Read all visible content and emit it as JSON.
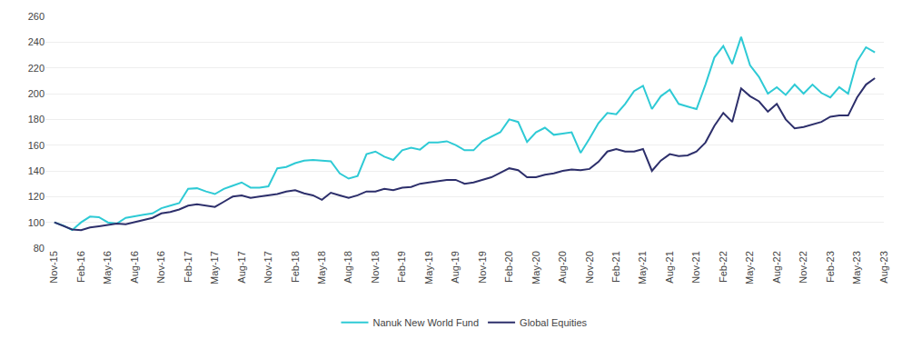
{
  "chart_data": {
    "type": "line",
    "categories": [
      "Nov-15",
      null,
      null,
      "Feb-16",
      null,
      null,
      "May-16",
      null,
      null,
      "Aug-16",
      null,
      null,
      "Nov-16",
      null,
      null,
      "Feb-17",
      null,
      null,
      "May-17",
      null,
      null,
      "Aug-17",
      null,
      null,
      "Nov-17",
      null,
      null,
      "Feb-18",
      null,
      null,
      "May-18",
      null,
      null,
      "Aug-18",
      null,
      null,
      "Nov-18",
      null,
      null,
      "Feb-19",
      null,
      null,
      "May-19",
      null,
      null,
      "Aug-19",
      null,
      null,
      "Nov-19",
      null,
      null,
      "Feb-20",
      null,
      null,
      "May-20",
      null,
      null,
      "Aug-20",
      null,
      null,
      "Nov-20",
      null,
      null,
      "Feb-21",
      null,
      null,
      "May-21",
      null,
      null,
      "Aug-21",
      null,
      null,
      "Nov-21",
      null,
      null,
      "Feb-22",
      null,
      null,
      "May-22",
      null,
      null,
      "Aug-22",
      null,
      null,
      "Nov-22",
      null,
      null,
      "Feb-23",
      null,
      null,
      "May-23",
      null,
      null,
      "Aug-23"
    ],
    "series": [
      {
        "name": "Nanuk New World Fund",
        "color": "#2ECAD5",
        "values": [
          100.0,
          97.5,
          94.0,
          100.0,
          104.5,
          104.0,
          100.0,
          99.0,
          103.5,
          105.0,
          106.0,
          107.0,
          111.0,
          113.0,
          115.0,
          126.0,
          126.5,
          124.0,
          122.0,
          126.0,
          128.5,
          131.0,
          127.0,
          127.0,
          128.0,
          142.0,
          143.0,
          146.0,
          148.0,
          148.5,
          148.0,
          147.5,
          138.0,
          134.0,
          136.0,
          153.0,
          155.0,
          151.0,
          148.5,
          156.0,
          158.0,
          156.5,
          162.0,
          162.0,
          163.0,
          160.0,
          156.0,
          156.0,
          163.0,
          166.5,
          170.0,
          180.0,
          178.0,
          162.5,
          170.0,
          173.5,
          168.0,
          169.0,
          170.0,
          154.0,
          165.0,
          177.0,
          185.0,
          184.0,
          192.0,
          202.0,
          206.0,
          188.0,
          198.0,
          203.0,
          192.0,
          190.0,
          188.0,
          207.0,
          228.0,
          237.0,
          223.0,
          244.0,
          222.0,
          213.0,
          200.0,
          205.0,
          199.0,
          207.0,
          200.0,
          207.0,
          200.5,
          197.0,
          205.0,
          200.0,
          225.0,
          236.0,
          232.0,
          null
        ]
      },
      {
        "name": "Global Equities",
        "color": "#2D2F6B",
        "values": [
          100.0,
          97.0,
          94.5,
          94.0,
          96.0,
          97.0,
          98.0,
          99.0,
          98.5,
          100.0,
          102.0,
          103.5,
          107.0,
          108.0,
          110.0,
          113.0,
          114.0,
          113.0,
          112.0,
          116.0,
          120.0,
          121.0,
          119.0,
          120.0,
          121.0,
          122.0,
          124.0,
          125.0,
          122.5,
          121.0,
          117.5,
          123.0,
          121.0,
          119.0,
          121.0,
          124.0,
          124.0,
          126.0,
          125.0,
          127.0,
          127.5,
          130.0,
          131.0,
          132.0,
          133.0,
          133.0,
          130.0,
          131.0,
          133.0,
          135.0,
          138.5,
          142.0,
          140.5,
          135.0,
          135.0,
          137.0,
          138.0,
          140.0,
          141.0,
          140.5,
          141.5,
          147.0,
          155.0,
          157.0,
          155.0,
          155.0,
          157.0,
          140.0,
          148.0,
          153.0,
          151.5,
          152.0,
          155.0,
          162.0,
          175.0,
          185.0,
          178.0,
          204.0,
          198.0,
          194.0,
          186.0,
          192.0,
          180.0,
          173.0,
          174.0,
          176.0,
          178.0,
          182.0,
          183.0,
          183.0,
          197.0,
          207.0,
          212.0,
          null
        ]
      }
    ],
    "ylim": [
      80,
      260
    ],
    "yticks": [
      80,
      100,
      120,
      140,
      160,
      180,
      200,
      220,
      240,
      260
    ],
    "grid": true,
    "legend": "bottom"
  }
}
